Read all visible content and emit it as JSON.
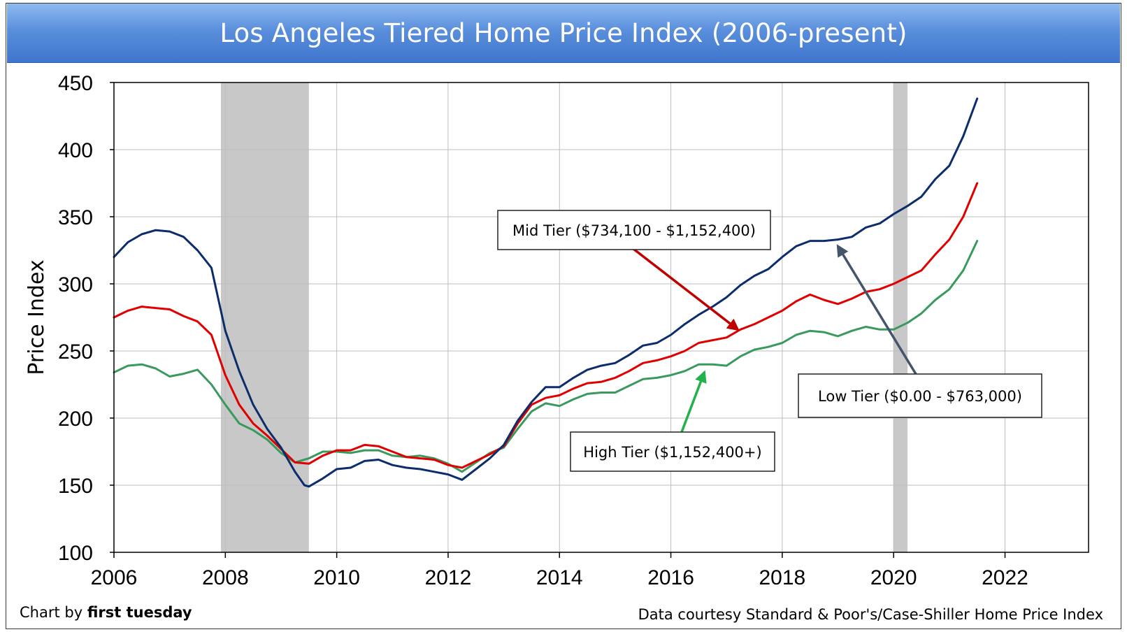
{
  "chart_data": {
    "type": "line",
    "title": "Los Angeles Tiered Home Price Index (2006-present)",
    "xlabel": "",
    "ylabel": "Price Index",
    "xlim": [
      2006,
      2023.5
    ],
    "ylim": [
      100,
      450
    ],
    "x_ticks": [
      2006,
      2008,
      2010,
      2012,
      2014,
      2016,
      2018,
      2020,
      2022
    ],
    "y_ticks": [
      100,
      150,
      200,
      250,
      300,
      350,
      400,
      450
    ],
    "grid": true,
    "legend": "none",
    "recession_shading": [
      [
        2007.92,
        2009.5
      ],
      [
        2020.0,
        2020.25
      ]
    ],
    "series": [
      {
        "color": "#0c2d6b",
        "x": [
          2006.0,
          2006.25,
          2006.5,
          2006.75,
          2007.0,
          2007.25,
          2007.5,
          2007.75,
          2008.0,
          2008.25,
          2008.5,
          2008.75,
          2009.0,
          2009.25,
          2009.42,
          2009.5,
          2009.75,
          2010.0,
          2010.25,
          2010.5,
          2010.75,
          2011.0,
          2011.25,
          2011.5,
          2011.75,
          2012.0,
          2012.25,
          2012.5,
          2012.75,
          2013.0,
          2013.25,
          2013.5,
          2013.75,
          2014.0,
          2014.25,
          2014.5,
          2014.75,
          2015.0,
          2015.25,
          2015.5,
          2015.75,
          2016.0,
          2016.25,
          2016.5,
          2016.75,
          2017.0,
          2017.25,
          2017.5,
          2017.75,
          2018.0,
          2018.25,
          2018.5,
          2018.75,
          2019.0,
          2019.25,
          2019.5,
          2019.75,
          2020.0,
          2020.25,
          2020.5,
          2020.75,
          2021.0,
          2021.25,
          2021.5
        ],
        "values": [
          320,
          331,
          337,
          340,
          339,
          335,
          325,
          312,
          265,
          235,
          210,
          192,
          178,
          160,
          150,
          149,
          155,
          162,
          163,
          168,
          169,
          165,
          163,
          162,
          160,
          158,
          154,
          162,
          170,
          180,
          198,
          212,
          223,
          223,
          230,
          236,
          239,
          241,
          247,
          254,
          256,
          262,
          270,
          277,
          283,
          290,
          299,
          306,
          311,
          320,
          328,
          332,
          332,
          333,
          335,
          342,
          345,
          352,
          358,
          365,
          378,
          388,
          410,
          438
        ]
      },
      {
        "color": "#e00000",
        "x": [
          2006.0,
          2006.25,
          2006.5,
          2006.75,
          2007.0,
          2007.25,
          2007.5,
          2007.75,
          2008.0,
          2008.25,
          2008.5,
          2008.75,
          2009.0,
          2009.25,
          2009.5,
          2009.75,
          2010.0,
          2010.25,
          2010.5,
          2010.75,
          2011.0,
          2011.25,
          2011.5,
          2011.75,
          2012.0,
          2012.25,
          2012.5,
          2012.75,
          2013.0,
          2013.25,
          2013.5,
          2013.75,
          2014.0,
          2014.25,
          2014.5,
          2014.75,
          2015.0,
          2015.25,
          2015.5,
          2015.75,
          2016.0,
          2016.25,
          2016.5,
          2016.75,
          2017.0,
          2017.25,
          2017.5,
          2017.75,
          2018.0,
          2018.25,
          2018.5,
          2018.75,
          2019.0,
          2019.25,
          2019.5,
          2019.75,
          2020.0,
          2020.25,
          2020.5,
          2020.75,
          2021.0,
          2021.25,
          2021.5
        ],
        "values": [
          275,
          280,
          283,
          282,
          281,
          276,
          272,
          262,
          232,
          210,
          196,
          187,
          177,
          167,
          166,
          172,
          176,
          176,
          180,
          179,
          175,
          171,
          170,
          169,
          165,
          163,
          168,
          173,
          179,
          196,
          210,
          215,
          217,
          222,
          226,
          227,
          230,
          235,
          241,
          243,
          246,
          250,
          256,
          258,
          260,
          266,
          270,
          275,
          280,
          287,
          292,
          288,
          285,
          289,
          294,
          296,
          300,
          305,
          310,
          322,
          333,
          350,
          375
        ]
      },
      {
        "color": "#3a9a5e",
        "x": [
          2006.0,
          2006.25,
          2006.5,
          2006.75,
          2007.0,
          2007.25,
          2007.5,
          2007.75,
          2008.0,
          2008.25,
          2008.5,
          2008.75,
          2009.0,
          2009.25,
          2009.5,
          2009.75,
          2010.0,
          2010.25,
          2010.5,
          2010.75,
          2011.0,
          2011.25,
          2011.5,
          2011.75,
          2012.0,
          2012.25,
          2012.5,
          2012.75,
          2013.0,
          2013.25,
          2013.5,
          2013.75,
          2014.0,
          2014.25,
          2014.5,
          2014.75,
          2015.0,
          2015.25,
          2015.5,
          2015.75,
          2016.0,
          2016.25,
          2016.5,
          2016.75,
          2017.0,
          2017.25,
          2017.5,
          2017.75,
          2018.0,
          2018.25,
          2018.5,
          2018.75,
          2019.0,
          2019.25,
          2019.5,
          2019.75,
          2020.0,
          2020.25,
          2020.5,
          2020.75,
          2021.0,
          2021.25,
          2021.5
        ],
        "values": [
          234,
          239,
          240,
          237,
          231,
          233,
          236,
          225,
          210,
          196,
          191,
          184,
          174,
          167,
          170,
          175,
          175,
          174,
          176,
          176,
          172,
          171,
          172,
          170,
          166,
          160,
          167,
          174,
          178,
          192,
          205,
          211,
          209,
          214,
          218,
          219,
          219,
          224,
          229,
          230,
          232,
          235,
          240,
          240,
          239,
          246,
          251,
          253,
          256,
          262,
          265,
          264,
          261,
          265,
          268,
          266,
          266,
          271,
          278,
          288,
          296,
          310,
          332
        ]
      }
    ],
    "annotations": [
      {
        "text": "Mid Tier ($734,100 - $1,152,400)",
        "arrow_to_x": 2017.2,
        "arrow_to_y": 266,
        "arrow_color": "#c00000"
      },
      {
        "text": "Low Tier ($0.00 - $763,000)",
        "arrow_to_x": 2019.0,
        "arrow_to_y": 328,
        "arrow_color": "#44546a"
      },
      {
        "text": "High Tier ($1,152,400+)",
        "arrow_to_x": 2016.6,
        "arrow_to_y": 234,
        "arrow_color": "#22b14c"
      }
    ],
    "notes": {
      "left_prefix": "Chart by ",
      "left_bold": "first tuesday",
      "right": "Data courtesy Standard & Poor's/Case-Shiller Home Price Index"
    }
  }
}
